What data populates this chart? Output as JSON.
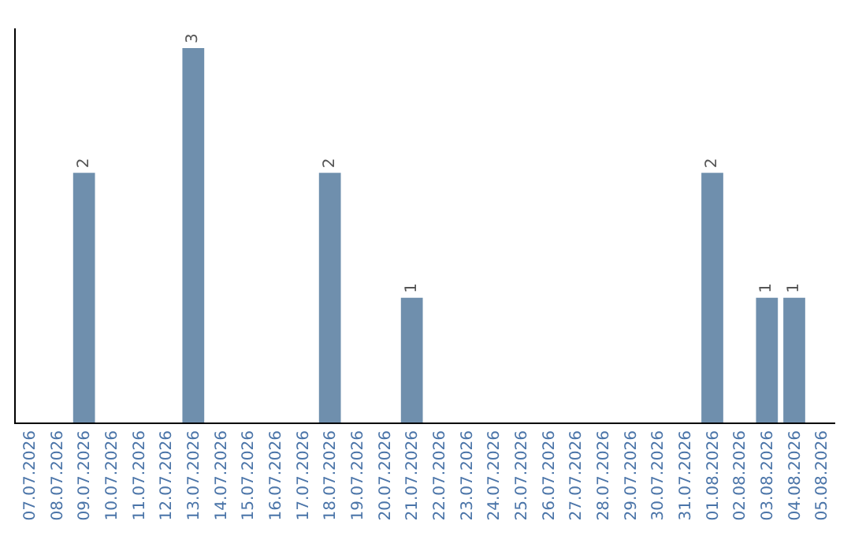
{
  "chart_data": {
    "type": "bar",
    "categories": [
      "07.07.2026",
      "08.07.2026",
      "09.07.2026",
      "10.07.2026",
      "11.07.2026",
      "12.07.2026",
      "13.07.2026",
      "14.07.2026",
      "15.07.2026",
      "16.07.2026",
      "17.07.2026",
      "18.07.2026",
      "19.07.2026",
      "20.07.2026",
      "21.07.2026",
      "22.07.2026",
      "23.07.2026",
      "24.07.2026",
      "25.07.2026",
      "26.07.2026",
      "27.07.2026",
      "28.07.2026",
      "29.07.2026",
      "30.07.2026",
      "31.07.2026",
      "01.08.2026",
      "02.08.2026",
      "03.08.2026",
      "04.08.2026",
      "05.08.2026"
    ],
    "values": [
      0,
      0,
      2,
      0,
      0,
      0,
      3,
      0,
      0,
      0,
      0,
      2,
      0,
      0,
      1,
      0,
      0,
      0,
      0,
      0,
      0,
      0,
      0,
      0,
      0,
      2,
      0,
      1,
      1,
      0
    ],
    "value_labels": [
      null,
      null,
      "2",
      null,
      null,
      null,
      "3",
      null,
      null,
      null,
      null,
      "2",
      null,
      null,
      "1",
      null,
      null,
      null,
      null,
      null,
      null,
      null,
      null,
      null,
      null,
      "2",
      null,
      "1",
      "1",
      null
    ],
    "color": "#6f8fad",
    "tick_labels": "x"
  }
}
